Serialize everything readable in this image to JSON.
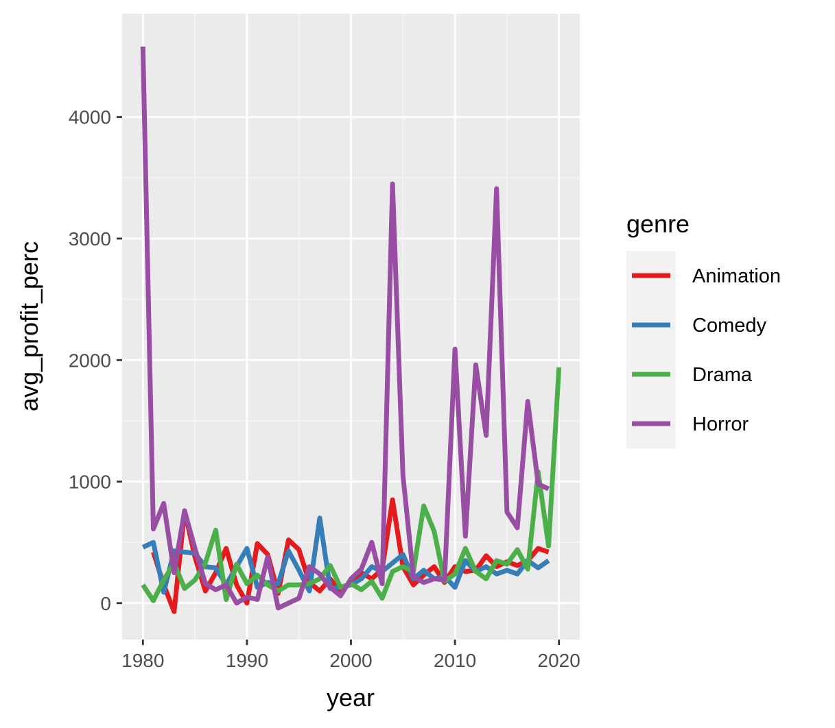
{
  "chart_data": {
    "type": "line",
    "xlabel": "year",
    "ylabel": "avg_profit_perc",
    "xlim": [
      1978,
      2022
    ],
    "ylim": [
      -300,
      4850
    ],
    "x_ticks": [
      1980,
      1990,
      2000,
      2010,
      2020
    ],
    "y_ticks": [
      0,
      1000,
      2000,
      3000,
      4000
    ],
    "x_tick_labels": [
      "1980",
      "1990",
      "2000",
      "2010",
      "2020"
    ],
    "y_tick_labels": [
      "0",
      "1000",
      "2000",
      "3000",
      "4000"
    ],
    "grid": true,
    "legend": {
      "title": "genre",
      "position": "right"
    },
    "series": [
      {
        "name": "Animation",
        "color": "#e41a1c",
        "x": [
          1981,
          1982,
          1983,
          1984,
          1985,
          1986,
          1987,
          1988,
          1989,
          1990,
          1991,
          1992,
          1993,
          1994,
          1995,
          1996,
          1997,
          1998,
          1999,
          2000,
          2001,
          2002,
          2003,
          2004,
          2005,
          2006,
          2007,
          2008,
          2009,
          2010,
          2011,
          2012,
          2013,
          2014,
          2015,
          2016,
          2017,
          2018,
          2019
        ],
        "y": [
          420,
          150,
          -70,
          760,
          380,
          100,
          250,
          450,
          150,
          0,
          490,
          400,
          80,
          520,
          440,
          170,
          100,
          200,
          90,
          180,
          250,
          200,
          280,
          850,
          300,
          150,
          230,
          300,
          170,
          300,
          260,
          270,
          390,
          300,
          340,
          310,
          350,
          450,
          420
        ]
      },
      {
        "name": "Comedy",
        "color": "#377eb8",
        "x": [
          1980,
          1981,
          1982,
          1983,
          1984,
          1985,
          1986,
          1987,
          1988,
          1989,
          1990,
          1991,
          1992,
          1993,
          1994,
          1995,
          1996,
          1997,
          1998,
          1999,
          2000,
          2001,
          2002,
          2003,
          2004,
          2005,
          2006,
          2007,
          2008,
          2009,
          2010,
          2011,
          2012,
          2013,
          2014,
          2015,
          2016,
          2017,
          2018,
          2019
        ],
        "y": [
          460,
          500,
          90,
          430,
          420,
          410,
          300,
          290,
          150,
          300,
          450,
          130,
          170,
          160,
          430,
          270,
          100,
          700,
          120,
          130,
          150,
          200,
          300,
          260,
          330,
          400,
          200,
          270,
          200,
          220,
          130,
          350,
          260,
          300,
          240,
          270,
          240,
          350,
          290,
          350
        ]
      },
      {
        "name": "Drama",
        "color": "#4daf4a",
        "x": [
          1980,
          1981,
          1982,
          1983,
          1984,
          1985,
          1986,
          1987,
          1988,
          1989,
          1990,
          1991,
          1992,
          1993,
          1994,
          1995,
          1996,
          1997,
          1998,
          1999,
          2000,
          2001,
          2002,
          2003,
          2004,
          2005,
          2006,
          2007,
          2008,
          2009,
          2010,
          2011,
          2012,
          2013,
          2014,
          2015,
          2016,
          2017,
          2018,
          2019,
          2020
        ],
        "y": [
          150,
          20,
          190,
          330,
          120,
          190,
          330,
          600,
          30,
          320,
          160,
          230,
          150,
          100,
          150,
          150,
          160,
          200,
          310,
          130,
          160,
          110,
          180,
          40,
          260,
          300,
          260,
          800,
          590,
          180,
          240,
          450,
          260,
          200,
          350,
          320,
          440,
          280,
          1080,
          470,
          1940
        ]
      },
      {
        "name": "Horror",
        "color": "#984ea3",
        "x": [
          1980,
          1981,
          1982,
          1983,
          1984,
          1985,
          1986,
          1987,
          1988,
          1989,
          1990,
          1991,
          1992,
          1993,
          1994,
          1995,
          1996,
          1997,
          1998,
          1999,
          2000,
          2001,
          2002,
          2003,
          2004,
          2005,
          2006,
          2007,
          2008,
          2009,
          2010,
          2011,
          2012,
          2013,
          2014,
          2015,
          2016,
          2017,
          2018,
          2019
        ],
        "y": [
          4580,
          610,
          820,
          250,
          760,
          450,
          160,
          110,
          150,
          0,
          50,
          30,
          380,
          -40,
          0,
          40,
          300,
          240,
          130,
          60,
          200,
          280,
          500,
          160,
          3450,
          1050,
          220,
          170,
          200,
          190,
          2090,
          550,
          1960,
          1380,
          3410,
          750,
          620,
          1660,
          980,
          940
        ]
      }
    ]
  }
}
